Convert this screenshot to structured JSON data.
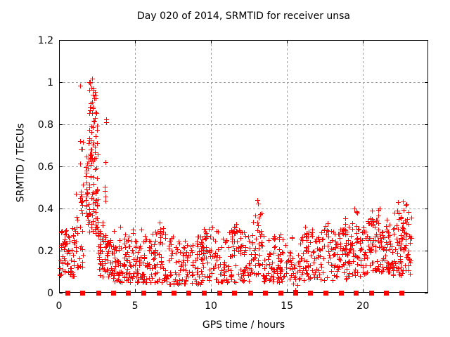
{
  "chart_data": {
    "type": "scatter",
    "title": "Day 020 of 2014, SRMTID for receiver unsa",
    "xlabel": "GPS time / hours",
    "ylabel": "SRMTID / TECUs",
    "xlim": [
      0,
      24.3
    ],
    "ylim": [
      0,
      1.2
    ],
    "x_ticks": {
      "values": [
        0,
        5,
        10,
        15,
        20
      ],
      "labels": [
        "0",
        "5",
        "10",
        "15",
        "20"
      ]
    },
    "y_ticks": {
      "values": [
        0,
        0.2,
        0.4,
        0.6,
        0.8,
        1,
        1.2
      ],
      "labels": [
        "0",
        "0.2",
        "0.4",
        "0.6",
        "0.8",
        "1",
        "1.2"
      ]
    },
    "grid": "dashed-major",
    "legend": "none",
    "colors": {
      "marker": "#ff0000",
      "grid": "#a0a0a0",
      "axis": "#000000",
      "text": "#000000",
      "background": "#ffffff"
    },
    "series": [
      {
        "name": "SRMTID scatter",
        "marker": "plus",
        "color": "#ff0000",
        "seed": 20140120,
        "peak_points": [
          [
            2.18,
            1.017
          ],
          [
            2.05,
            0.993
          ],
          [
            1.4,
            0.985
          ],
          [
            2.13,
            0.975
          ],
          [
            2.27,
            0.965
          ],
          [
            2.36,
            0.955
          ],
          [
            2.21,
            0.94
          ],
          [
            2.31,
            0.925
          ],
          [
            2.1,
            0.9
          ],
          [
            2.24,
            0.885
          ],
          [
            2.02,
            0.868
          ],
          [
            2.16,
            0.852
          ],
          [
            3.08,
            0.825
          ],
          [
            3.12,
            0.81
          ],
          [
            1.37,
            0.72
          ],
          [
            3.06,
            0.62
          ],
          [
            13.05,
            0.44
          ],
          [
            13.12,
            0.425
          ],
          [
            22.3,
            0.43
          ],
          [
            22.85,
            0.42
          ],
          [
            15.55,
            0.015
          ]
        ],
        "cluster_format": [
          "x_min",
          "x_max",
          "n_points",
          "y_min",
          "y_max",
          "skew_to_low"
        ],
        "clusters": [
          [
            0.03,
            1.0,
            70,
            0.08,
            0.31,
            1.25
          ],
          [
            1.0,
            1.6,
            30,
            0.12,
            0.48,
            1.4
          ],
          [
            1.3,
            1.65,
            10,
            0.42,
            0.76,
            1.1
          ],
          [
            1.75,
            2.55,
            75,
            0.28,
            0.68,
            1.15
          ],
          [
            1.9,
            2.5,
            40,
            0.62,
            1.0,
            1.25
          ],
          [
            2.45,
            3.1,
            25,
            0.16,
            0.52,
            1.3
          ],
          [
            2.55,
            3.25,
            35,
            0.07,
            0.28,
            1.15
          ],
          [
            3.25,
            5.6,
            135,
            0.05,
            0.27,
            1.35
          ],
          [
            3.5,
            5.5,
            8,
            0.24,
            0.32,
            1.0
          ],
          [
            5.6,
            7.0,
            75,
            0.05,
            0.3,
            1.4
          ],
          [
            6.5,
            6.9,
            6,
            0.28,
            0.37,
            1.0
          ],
          [
            7.0,
            9.4,
            115,
            0.04,
            0.27,
            1.35
          ],
          [
            9.3,
            10.2,
            50,
            0.06,
            0.31,
            1.25
          ],
          [
            10.2,
            12.6,
            115,
            0.05,
            0.3,
            1.35
          ],
          [
            11.2,
            11.7,
            6,
            0.24,
            0.33,
            1.0
          ],
          [
            12.6,
            13.4,
            42,
            0.08,
            0.38,
            1.15
          ],
          [
            13.4,
            15.35,
            95,
            0.05,
            0.28,
            1.35
          ],
          [
            15.35,
            15.75,
            12,
            0.03,
            0.17,
            1.1
          ],
          [
            15.75,
            19.0,
            165,
            0.06,
            0.3,
            1.35
          ],
          [
            16.1,
            16.45,
            6,
            0.25,
            0.36,
            1.0
          ],
          [
            17.4,
            17.75,
            6,
            0.25,
            0.35,
            1.0
          ],
          [
            18.55,
            18.95,
            6,
            0.26,
            0.37,
            1.0
          ],
          [
            19.0,
            20.3,
            75,
            0.08,
            0.33,
            1.25
          ],
          [
            19.4,
            19.65,
            4,
            0.28,
            0.4,
            1.0
          ],
          [
            20.3,
            21.8,
            95,
            0.1,
            0.36,
            1.2
          ],
          [
            20.5,
            21.4,
            8,
            0.3,
            0.42,
            1.0
          ],
          [
            21.8,
            23.2,
            95,
            0.08,
            0.38,
            1.2
          ],
          [
            22.0,
            23.1,
            10,
            0.28,
            0.44,
            1.0
          ]
        ]
      },
      {
        "name": "hourly baseline markers",
        "marker": "filled-square",
        "color": "#ff0000",
        "y": 0,
        "x_values": [
          0.55,
          1.55,
          2.58,
          3.58,
          4.55,
          5.56,
          6.56,
          7.55,
          8.53,
          9.52,
          10.54,
          11.54,
          12.59,
          13.56,
          14.57,
          15.54,
          16.54,
          17.55,
          18.55,
          19.54,
          20.54,
          21.54,
          22.55
        ]
      }
    ]
  }
}
